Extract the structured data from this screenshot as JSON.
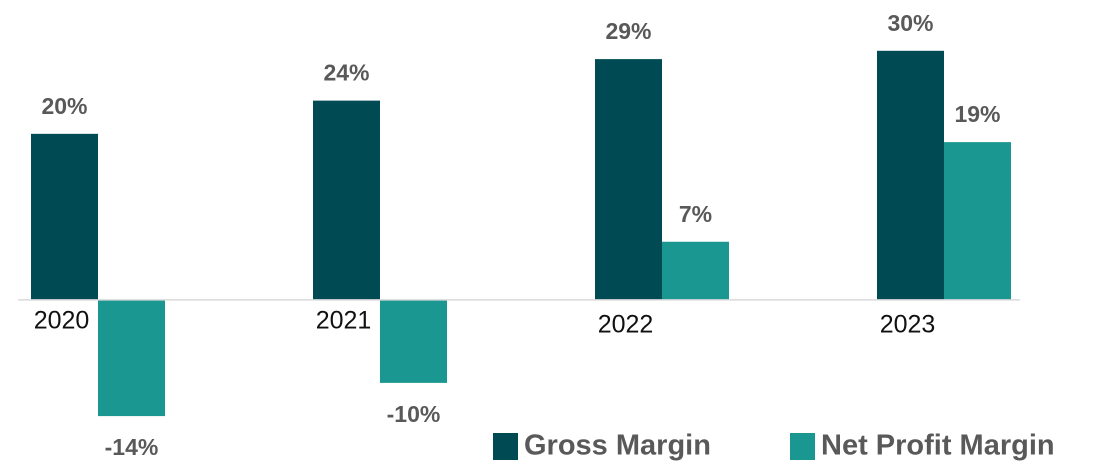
{
  "chart_data": {
    "type": "bar",
    "categories": [
      "2020",
      "2021",
      "2022",
      "2023"
    ],
    "series": [
      {
        "name": "Gross Margin",
        "color": "#004a53",
        "values": [
          20,
          24,
          29,
          30
        ],
        "value_labels": [
          "20%",
          "24%",
          "29%",
          "30%"
        ]
      },
      {
        "name": "Net Profit Margin",
        "color": "#1a9791",
        "values": [
          -14,
          -10,
          7,
          19
        ],
        "value_labels": [
          "-14%",
          "-10%",
          "7%",
          "19%"
        ]
      }
    ],
    "ylim": [
      -17,
      36
    ],
    "legend": "bottom-right"
  }
}
